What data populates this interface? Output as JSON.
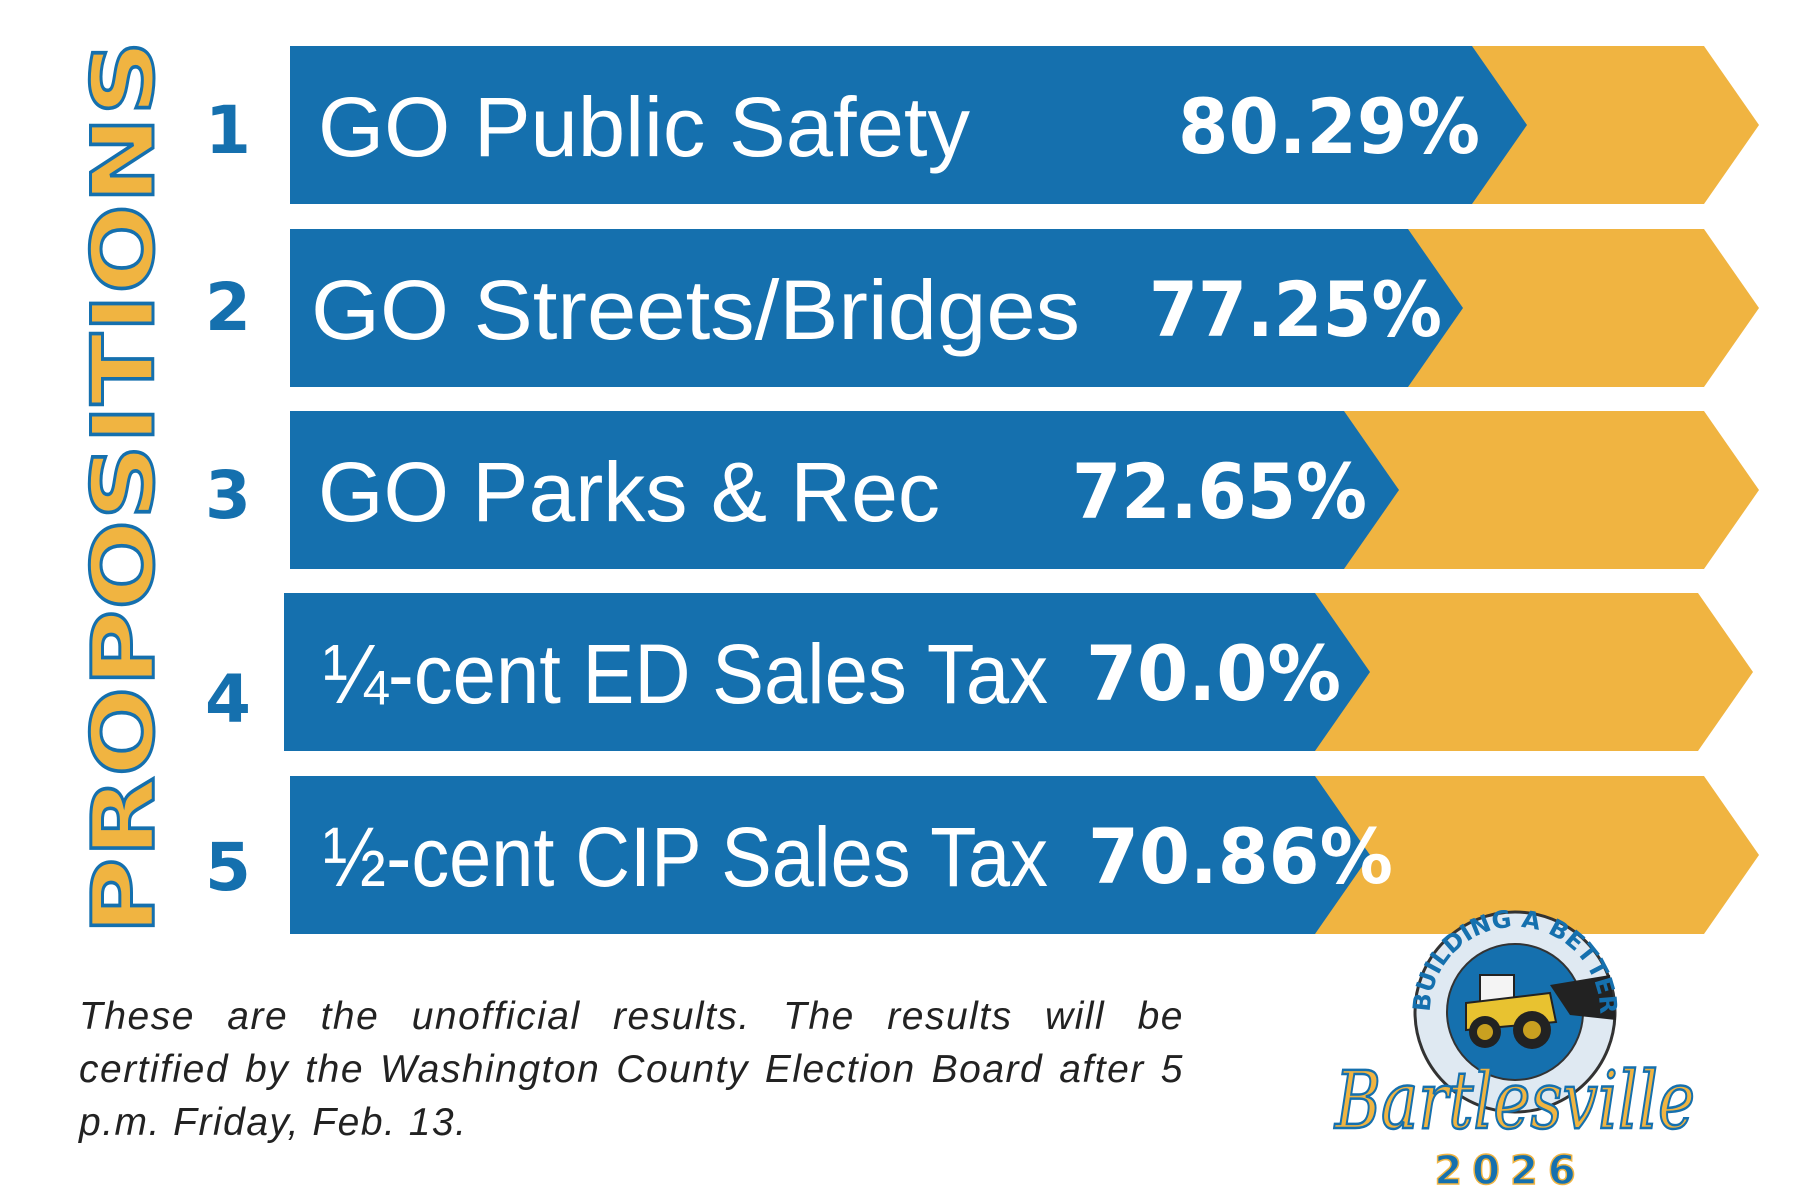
{
  "sidebar_title": "PROPOSITIONS",
  "colors": {
    "blue": "#1570ae",
    "gold": "#f0b441"
  },
  "propositions": [
    {
      "number": "1",
      "label": "GO Public Safety",
      "percent": "80.29%",
      "value": 80.29
    },
    {
      "number": "2",
      "label": "GO Streets/Bridges",
      "percent": "77.25%",
      "value": 77.25
    },
    {
      "number": "3",
      "label": "GO Parks & Rec",
      "percent": "72.65%",
      "value": 72.65
    },
    {
      "number": "4",
      "label": "¼-cent ED Sales Tax",
      "percent": "70.0%",
      "value": 70.0
    },
    {
      "number": "5",
      "label": "½-cent CIP Sales Tax",
      "percent": "70.86%",
      "value": 70.86
    }
  ],
  "footnote": "These are the unofficial results. The results will be certified by the Washington County Election Board after 5 p.m. Friday, Feb. 13.",
  "logo": {
    "arc_text": "BUILDING A BETTER",
    "script_text": "Bartlesville",
    "year": "2026"
  }
}
